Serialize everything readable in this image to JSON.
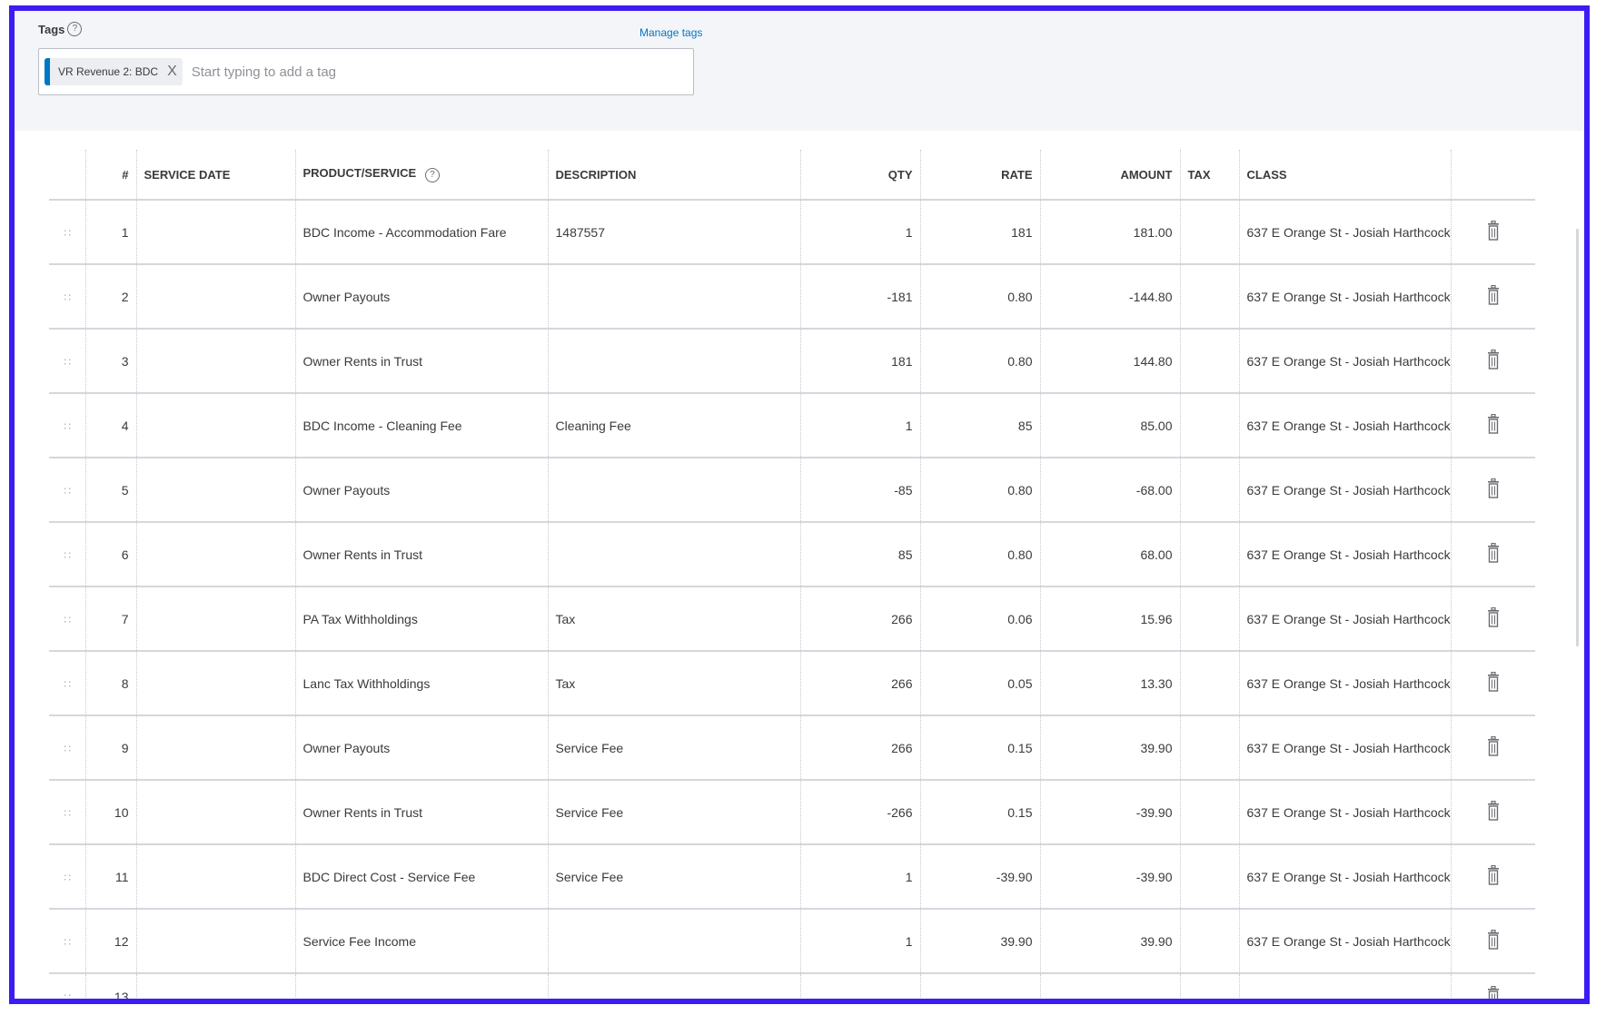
{
  "tags": {
    "label": "Tags",
    "help": "?",
    "manage_link": "Manage tags",
    "chip_label": "VR Revenue 2: BDC",
    "chip_close": "X",
    "placeholder": "Start typing to add a tag"
  },
  "table": {
    "headers": {
      "num": "#",
      "service_date": "SERVICE DATE",
      "product": "PRODUCT/SERVICE",
      "product_help": "?",
      "description": "DESCRIPTION",
      "qty": "QTY",
      "rate": "RATE",
      "amount": "AMOUNT",
      "tax": "TAX",
      "class": "CLASS"
    },
    "icons": {
      "drag": "drag-handle-icon",
      "delete": "trash-icon"
    },
    "rows": [
      {
        "num": "1",
        "service_date": "",
        "product": "BDC Income - Accommodation Fare",
        "description": "1487557",
        "qty": "1",
        "rate": "181",
        "amount": "181.00",
        "tax": "",
        "class": "637 E Orange St - Josiah Harthcock"
      },
      {
        "num": "2",
        "service_date": "",
        "product": "Owner Payouts",
        "description": "",
        "qty": "-181",
        "rate": "0.80",
        "amount": "-144.80",
        "tax": "",
        "class": "637 E Orange St - Josiah Harthcock"
      },
      {
        "num": "3",
        "service_date": "",
        "product": "Owner Rents in Trust",
        "description": "",
        "qty": "181",
        "rate": "0.80",
        "amount": "144.80",
        "tax": "",
        "class": "637 E Orange St - Josiah Harthcock"
      },
      {
        "num": "4",
        "service_date": "",
        "product": "BDC Income - Cleaning Fee",
        "description": "Cleaning Fee",
        "qty": "1",
        "rate": "85",
        "amount": "85.00",
        "tax": "",
        "class": "637 E Orange St - Josiah Harthcock"
      },
      {
        "num": "5",
        "service_date": "",
        "product": "Owner Payouts",
        "description": "",
        "qty": "-85",
        "rate": "0.80",
        "amount": "-68.00",
        "tax": "",
        "class": "637 E Orange St - Josiah Harthcock"
      },
      {
        "num": "6",
        "service_date": "",
        "product": "Owner Rents in Trust",
        "description": "",
        "qty": "85",
        "rate": "0.80",
        "amount": "68.00",
        "tax": "",
        "class": "637 E Orange St - Josiah Harthcock"
      },
      {
        "num": "7",
        "service_date": "",
        "product": "PA Tax Withholdings",
        "description": "Tax",
        "qty": "266",
        "rate": "0.06",
        "amount": "15.96",
        "tax": "",
        "class": "637 E Orange St - Josiah Harthcock"
      },
      {
        "num": "8",
        "service_date": "",
        "product": "Lanc Tax Withholdings",
        "description": "Tax",
        "qty": "266",
        "rate": "0.05",
        "amount": "13.30",
        "tax": "",
        "class": "637 E Orange St - Josiah Harthcock"
      },
      {
        "num": "9",
        "service_date": "",
        "product": "Owner Payouts",
        "description": "Service Fee",
        "qty": "266",
        "rate": "0.15",
        "amount": "39.90",
        "tax": "",
        "class": "637 E Orange St - Josiah Harthcock"
      },
      {
        "num": "10",
        "service_date": "",
        "product": "Owner Rents in Trust",
        "description": "Service Fee",
        "qty": "-266",
        "rate": "0.15",
        "amount": "-39.90",
        "tax": "",
        "class": "637 E Orange St - Josiah Harthcock"
      },
      {
        "num": "11",
        "service_date": "",
        "product": "BDC Direct Cost - Service Fee",
        "description": "Service Fee",
        "qty": "1",
        "rate": "-39.90",
        "amount": "-39.90",
        "tax": "",
        "class": "637 E Orange St - Josiah Harthcock"
      },
      {
        "num": "12",
        "service_date": "",
        "product": "Service Fee Income",
        "description": "",
        "qty": "1",
        "rate": "39.90",
        "amount": "39.90",
        "tax": "",
        "class": "637 E Orange St - Josiah Harthcock"
      },
      {
        "num": "13",
        "service_date": "",
        "product": "",
        "description": "",
        "qty": "",
        "rate": "",
        "amount": "",
        "tax": "",
        "class": ""
      }
    ]
  },
  "colors": {
    "border_accent": "#3b1cf2",
    "link": "#0077c5",
    "chip_bar": "#0077c5"
  }
}
